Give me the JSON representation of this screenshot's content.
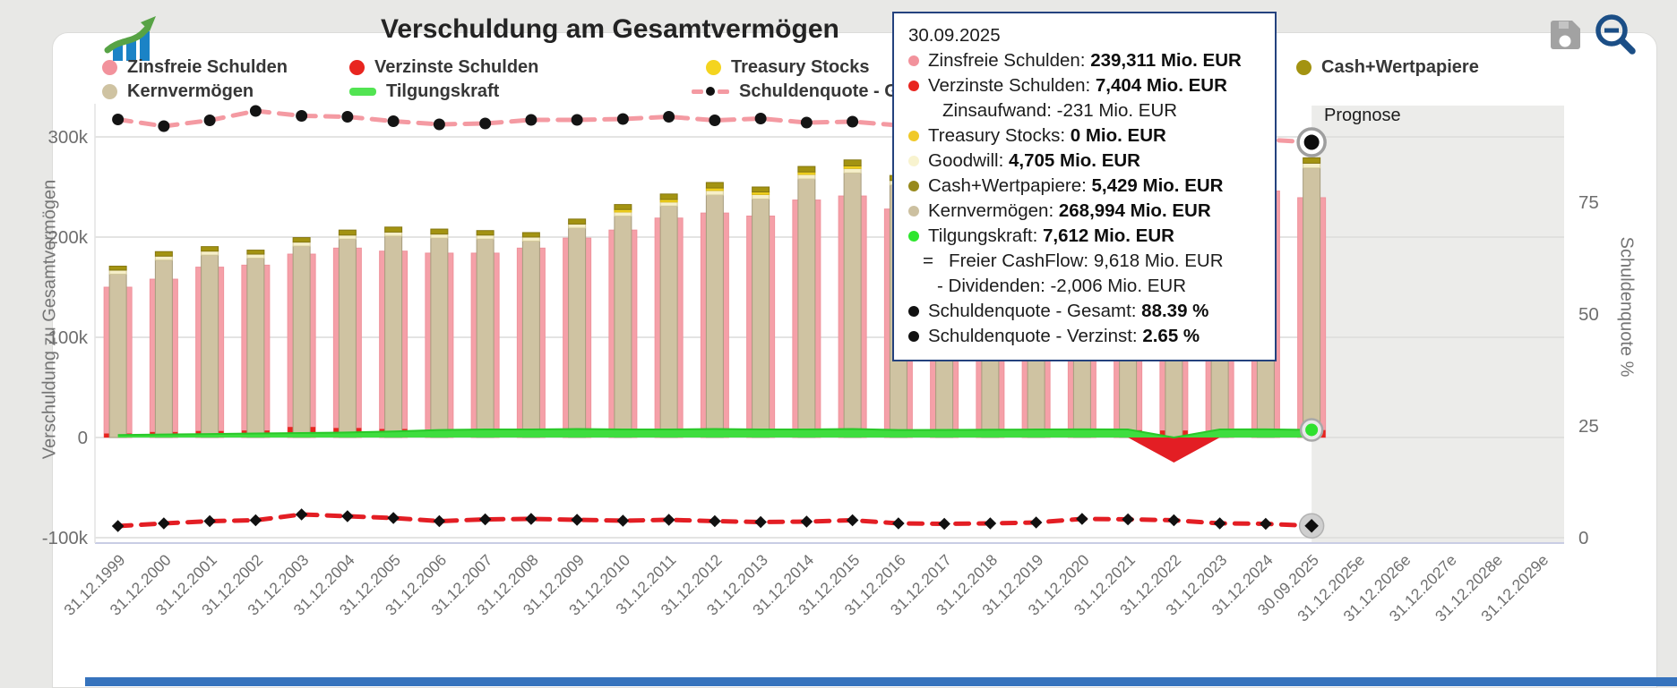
{
  "header": {
    "title": "Verschuldung am Gesamtvermögen"
  },
  "icons": {
    "logo": "trend-chart-icon",
    "save": "save-icon",
    "zoom_out": "zoom-out-icon"
  },
  "prognose_label": "Prognose",
  "colors": {
    "zinsfrei": "#f5a0a8",
    "verzinst": "#e8251f",
    "treasury": "#f4d41f",
    "goodwill": "#f6efc9",
    "cash": "#a39311",
    "kern": "#cfc3a2",
    "tilgungskraft": "#3fdd3f",
    "quote_gesamt_line": "#f49aa2",
    "quote_verzinst_line": "#e31e24",
    "tooltip_border": "#24427e",
    "prognose_bg": "#ececea",
    "bottom_strip": "#3673bd"
  },
  "legend": {
    "items": [
      {
        "row": 1,
        "col": 0,
        "label": "Zinsfreie Schulden",
        "marker": "circle",
        "color": "#f2929c"
      },
      {
        "row": 1,
        "col": 1,
        "label": "Verzinste Schulden",
        "marker": "circle",
        "color": "#e8251f"
      },
      {
        "row": 1,
        "col": 2,
        "label": "Treasury Stocks",
        "marker": "circle",
        "color": "#f4d41f"
      },
      {
        "row": 1,
        "col": 3,
        "label": "Cash+Wertpapiere",
        "marker": "circle",
        "color": "#a39311"
      },
      {
        "row": 2,
        "col": 0,
        "label": "Kernvermögen",
        "marker": "circle",
        "color": "#cfc3a2"
      },
      {
        "row": 2,
        "col": 1,
        "label": "Tilgungskraft",
        "marker": "line",
        "color": "#52e452"
      },
      {
        "row": 2,
        "col": 2,
        "label": "Schuldenquote - Gesamt",
        "marker": "dashdot",
        "color": "#f49aa2"
      }
    ]
  },
  "tooltip": {
    "title": "30.09.2025",
    "rows": [
      {
        "dot": "#f2929c",
        "label": "Zinsfreie Schulden: ",
        "value": "239,311 Mio. EUR"
      },
      {
        "dot": "#e8251f",
        "label": "Verzinste Schulden: ",
        "value": "7,404 Mio. EUR"
      },
      {
        "indent": 38,
        "label": "Zinsaufwand: -231 Mio. EUR",
        "value": ""
      },
      {
        "dot": "#f0c929",
        "label": "Treasury Stocks: ",
        "value": "0 Mio. EUR"
      },
      {
        "dot": "#f8f3cf",
        "label": "Goodwill: ",
        "value": "4,705 Mio. EUR"
      },
      {
        "dot": "#97891c",
        "label": "Cash+Wertpapiere: ",
        "value": "5,429 Mio. EUR"
      },
      {
        "dot": "#ccc0a0",
        "label": "Kernvermögen: ",
        "value": "268,994 Mio. EUR"
      },
      {
        "dot": "#2ee62e",
        "label": "Tilgungskraft: ",
        "value": "7,612 Mio. EUR"
      },
      {
        "indent": 16,
        "label": "=   Freier CashFlow: 9,618 Mio. EUR",
        "value": ""
      },
      {
        "indent": 32,
        "label": "- Dividenden: -2,006 Mio. EUR",
        "value": ""
      },
      {
        "dot": "#111111",
        "label": "Schuldenquote - Gesamt: ",
        "value": "88.39 %"
      },
      {
        "dot": "#111111",
        "label": "Schuldenquote - Verzinst: ",
        "value": "2.65 %"
      }
    ]
  },
  "chart_data": {
    "type": "bar",
    "title": "Verschuldung am Gesamtvermögen",
    "ylabel_left": "Verschuldung zu Gesamtvermögen",
    "ylabel_right": "Schuldenquote %",
    "ylim_left": [
      -100000,
      320000
    ],
    "ylim_right": [
      0,
      100
    ],
    "grid": true,
    "selected_index": 26,
    "selected_category": "30.09.2025",
    "prognose_start_index": 27,
    "left_ticks": [
      {
        "label": "300k",
        "value": 300000
      },
      {
        "label": "200k",
        "value": 200000
      },
      {
        "label": "100k",
        "value": 100000
      },
      {
        "label": "0",
        "value": 0
      },
      {
        "label": "-100k",
        "value": -100000
      }
    ],
    "right_ticks": [
      {
        "label": "75",
        "value": 75
      },
      {
        "label": "50",
        "value": 50
      },
      {
        "label": "25",
        "value": 25
      },
      {
        "label": "0",
        "value": 0
      }
    ],
    "categories": [
      "31.12.1999",
      "31.12.2000",
      "31.12.2001",
      "31.12.2002",
      "31.12.2003",
      "31.12.2004",
      "31.12.2005",
      "31.12.2006",
      "31.12.2007",
      "31.12.2008",
      "31.12.2009",
      "31.12.2010",
      "31.12.2011",
      "31.12.2012",
      "31.12.2013",
      "31.12.2014",
      "31.12.2015",
      "31.12.2016",
      "31.12.2017",
      "31.12.2018",
      "31.12.2019",
      "31.12.2020",
      "31.12.2021",
      "31.12.2022",
      "31.12.2023",
      "31.12.2024",
      "30.09.2025",
      "31.12.2025e",
      "31.12.2026e",
      "31.12.2027e",
      "31.12.2028e",
      "31.12.2029e"
    ],
    "series": [
      {
        "name": "Zinsfreie Schulden",
        "render": "bar-wide",
        "unit": "Mio. EUR",
        "values": [
          150000,
          158000,
          170000,
          172000,
          183000,
          189000,
          186000,
          184000,
          184000,
          189000,
          199000,
          207000,
          219000,
          224000,
          221000,
          237000,
          241000,
          228000,
          230000,
          232000,
          234000,
          236000,
          238000,
          236000,
          238000,
          246000,
          239311,
          null,
          null,
          null,
          null,
          null
        ]
      },
      {
        "name": "Verzinste Schulden",
        "render": "bar-wide-bottom",
        "unit": "Mio. EUR",
        "values": [
          4000,
          5500,
          6500,
          7000,
          10500,
          9500,
          8500,
          6500,
          7000,
          7500,
          7000,
          6500,
          7000,
          6500,
          6000,
          6500,
          7000,
          6000,
          5800,
          6000,
          6200,
          7500,
          7300,
          7000,
          6000,
          5800,
          7404,
          null,
          null,
          null,
          null,
          null
        ]
      },
      {
        "name": "Kernvermögen",
        "render": "stack",
        "unit": "Mio. EUR",
        "values": [
          163000,
          177000,
          182000,
          179000,
          191000,
          198000,
          201000,
          199000,
          198000,
          196000,
          209000,
          221000,
          231000,
          242000,
          238000,
          258000,
          264000,
          252000,
          254000,
          256000,
          258000,
          260000,
          262000,
          260000,
          262000,
          278000,
          268994,
          null,
          null,
          null,
          null,
          null
        ]
      },
      {
        "name": "Goodwill",
        "render": "stack",
        "unit": "Mio. EUR",
        "values": [
          4000,
          4000,
          4000,
          4000,
          4000,
          4000,
          4000,
          4000,
          4000,
          4000,
          4000,
          4000,
          4000,
          4500,
          4500,
          4500,
          4500,
          4500,
          4500,
          4500,
          4500,
          4700,
          4700,
          4700,
          4700,
          4700,
          4705,
          null,
          null,
          null,
          null,
          null
        ]
      },
      {
        "name": "Treasury Stocks",
        "render": "stack",
        "unit": "Mio. EUR",
        "values": [
          0,
          0,
          0,
          0,
          0,
          0,
          0,
          0,
          0,
          0,
          0,
          2500,
          2500,
          2500,
          2500,
          2500,
          2500,
          0,
          0,
          0,
          0,
          0,
          0,
          0,
          0,
          0,
          0,
          null,
          null,
          null,
          null,
          null
        ]
      },
      {
        "name": "Cash+Wertpapiere",
        "render": "stack",
        "unit": "Mio. EUR",
        "values": [
          4000,
          4500,
          4500,
          4000,
          4500,
          5000,
          5000,
          5000,
          4500,
          4500,
          5000,
          5000,
          5500,
          5500,
          5000,
          5500,
          6000,
          5000,
          5000,
          5200,
          5200,
          5500,
          5500,
          5300,
          5300,
          5400,
          5429,
          null,
          null,
          null,
          null,
          null
        ]
      },
      {
        "name": "Tilgungskraft",
        "render": "area",
        "unit": "Mio. EUR",
        "values": [
          2500,
          3000,
          3500,
          4000,
          4500,
          5000,
          6000,
          7500,
          8000,
          8000,
          8500,
          8000,
          8000,
          8500,
          8000,
          8000,
          8500,
          7500,
          7600,
          7800,
          8000,
          8200,
          8000,
          -25000,
          8000,
          8200,
          7612,
          null,
          null,
          null,
          null,
          null
        ]
      },
      {
        "name": "Schuldenquote - Gesamt",
        "render": "line",
        "axis": "right",
        "marker": "circle",
        "unit": "%",
        "values": [
          93.5,
          92.0,
          93.3,
          95.4,
          94.3,
          94.1,
          93.1,
          92.4,
          92.6,
          93.4,
          93.4,
          93.6,
          94.1,
          93.3,
          93.7,
          92.8,
          93.0,
          92.2,
          91.6,
          91.2,
          90.7,
          90.6,
          91.0,
          90.2,
          89.6,
          89.0,
          88.39,
          null,
          null,
          null,
          null,
          null
        ]
      },
      {
        "name": "Schuldenquote - Verzinst",
        "render": "line",
        "axis": "right",
        "marker": "diamond",
        "unit": "%",
        "values": [
          2.6,
          3.2,
          3.7,
          3.9,
          5.2,
          4.8,
          4.4,
          3.7,
          4.1,
          4.2,
          4.0,
          3.8,
          4.0,
          3.7,
          3.5,
          3.6,
          3.9,
          3.2,
          3.1,
          3.2,
          3.4,
          4.2,
          4.1,
          3.9,
          3.2,
          3.1,
          2.65,
          null,
          null,
          null,
          null,
          null
        ]
      }
    ]
  }
}
